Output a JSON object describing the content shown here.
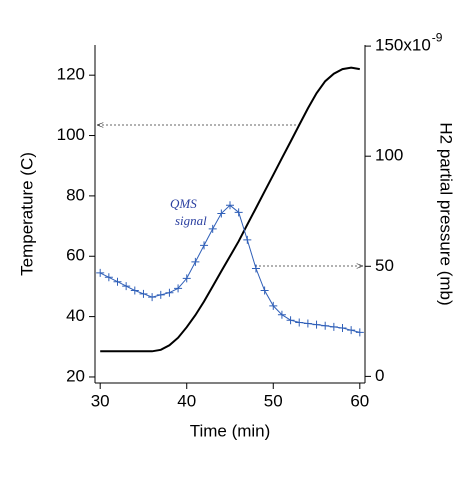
{
  "chart_data": {
    "type": "line",
    "xlabel": "Time (min)",
    "ylabel": "Temperature (C)",
    "y2label": "H2 partial pressure (mb)",
    "xlim": [
      29.4,
      60.6
    ],
    "xticks": [
      30,
      40,
      50,
      60
    ],
    "ylim": [
      18,
      130
    ],
    "yticks": [
      20,
      40,
      60,
      80,
      100,
      120
    ],
    "y2lim": [
      -3,
      150.5
    ],
    "y2ticks": [
      0,
      50,
      100,
      {
        "value": 150,
        "label": "150x10"
      }
    ],
    "y2_exponent": "-9",
    "annotations": [
      "QMS",
      "signal"
    ],
    "series": [
      {
        "color": "#000000",
        "axis": "y",
        "marker": "none",
        "x": [
          30,
          36,
          37,
          38,
          39,
          40,
          41,
          42,
          43,
          44,
          45,
          46,
          47,
          48,
          49,
          50,
          51,
          52,
          53,
          54,
          55,
          56,
          57,
          58,
          59,
          60
        ],
        "values": [
          28.5,
          28.5,
          29,
          30.5,
          33,
          36.5,
          40.5,
          45,
          50,
          55,
          60,
          65,
          70.5,
          76,
          81.5,
          87,
          92.5,
          98,
          103.5,
          109,
          114,
          118,
          120.5,
          122,
          122.5,
          122
        ]
      },
      {
        "color": "#2f5fb8",
        "axis": "y2",
        "marker": "+",
        "x": [
          30,
          31,
          32,
          33,
          34,
          35,
          36,
          37,
          38,
          39,
          40,
          41,
          42,
          43,
          44,
          45,
          46,
          47,
          48,
          49,
          50,
          51,
          52,
          53,
          54,
          55,
          56,
          57,
          58,
          59,
          60
        ],
        "values": [
          47,
          45,
          43,
          41,
          39,
          37.5,
          36,
          37,
          38,
          40,
          44.5,
          52,
          59.5,
          67,
          74,
          77.7,
          74.5,
          62,
          49,
          39,
          32,
          28,
          25.5,
          24.5,
          24,
          23.5,
          23,
          22.5,
          22,
          21,
          20
        ]
      }
    ]
  }
}
